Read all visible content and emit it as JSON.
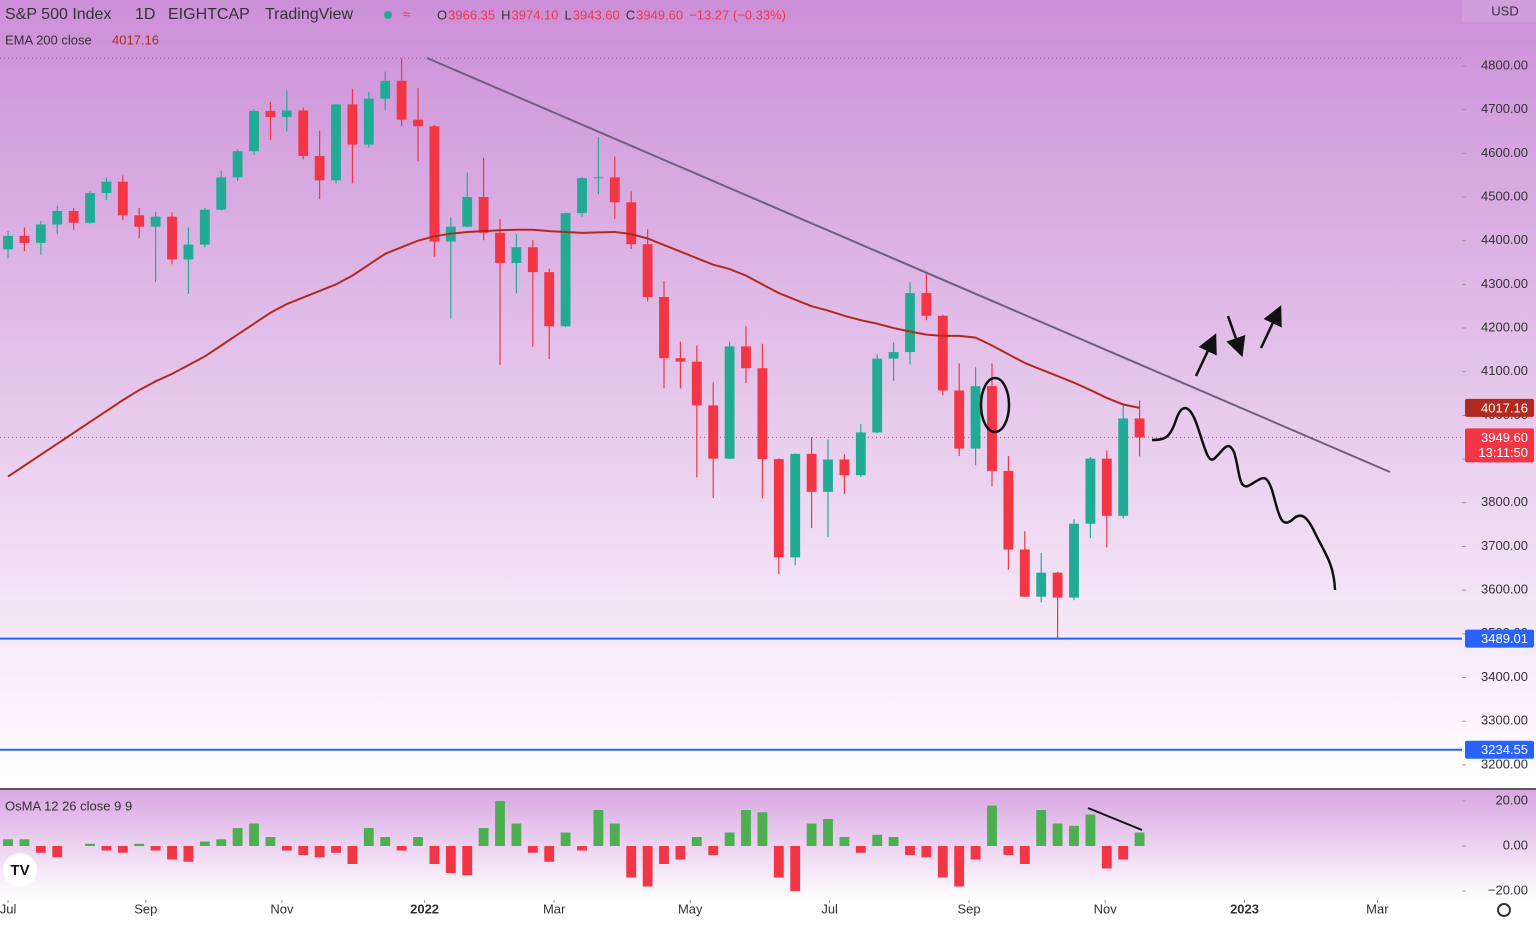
{
  "chart_data": [
    {
      "type": "candlestick",
      "title": "S&P 500 Index",
      "interval": "1D",
      "exchange": "EIGHTCAP",
      "source": "TradingView",
      "legend": [
        {
          "key": "O",
          "value": "3966.35"
        },
        {
          "key": "H",
          "value": "3974.10"
        },
        {
          "key": "L",
          "value": "3943.60"
        },
        {
          "key": "C",
          "value": "3949.60"
        }
      ],
      "change": "−13.27 (−0.33%)",
      "currency": "USD",
      "up_color": "#22ab94",
      "down_color": "#f23645",
      "open": [
        4380,
        4411,
        4395,
        4437,
        4468,
        4441,
        4509,
        4535,
        4458,
        4432,
        4455,
        4357,
        4391,
        4471,
        4545,
        4605,
        4697,
        4683,
        4698,
        4594,
        4538,
        4712,
        4620,
        4725,
        4766,
        4677,
        4662,
        4398,
        4432,
        4500,
        4418,
        4349,
        4385,
        4328,
        4204,
        4463,
        4543,
        4545,
        4488,
        4392,
        4271,
        4131,
        4123,
        4023,
        3901,
        4158,
        4108,
        3900,
        3675,
        3912,
        3825,
        3899,
        3863,
        3961,
        4130,
        4145,
        4280,
        4228,
        4057,
        3924,
        4067,
        3873,
        3693,
        3585,
        3640,
        3583,
        3752,
        3901,
        3770,
        3993
      ],
      "high": [
        4422,
        4430,
        4445,
        4480,
        4475,
        4513,
        4545,
        4549,
        4475,
        4466,
        4465,
        4430,
        4475,
        4560,
        4608,
        4700,
        4718,
        4744,
        4705,
        4652,
        4713,
        4748,
        4740,
        4787,
        4818,
        4749,
        4665,
        4453,
        4556,
        4590,
        4450,
        4416,
        4401,
        4336,
        4465,
        4546,
        4637,
        4593,
        4513,
        4426,
        4308,
        4169,
        4160,
        4076,
        4169,
        4204,
        4164,
        3902,
        3913,
        3950,
        3945,
        3911,
        3980,
        4140,
        4167,
        4305,
        4325,
        4231,
        4119,
        4110,
        4119,
        3907,
        3735,
        3685,
        3642,
        3762,
        3905,
        3920,
        4028,
        4034
      ],
      "low": [
        4360,
        4376,
        4368,
        4415,
        4424,
        4438,
        4493,
        4447,
        4406,
        4305,
        4346,
        4278,
        4385,
        4469,
        4537,
        4596,
        4630,
        4650,
        4586,
        4495,
        4531,
        4531,
        4613,
        4699,
        4662,
        4582,
        4363,
        4222,
        4431,
        4401,
        4115,
        4279,
        4157,
        4129,
        4202,
        4455,
        4507,
        4450,
        4381,
        4261,
        4062,
        4062,
        3858,
        3811,
        3900,
        4074,
        3810,
        3637,
        3657,
        3742,
        3721,
        3820,
        3859,
        3959,
        4079,
        4117,
        4218,
        4046,
        3907,
        3886,
        3838,
        3647,
        3584,
        3572,
        3491,
        3577,
        3719,
        3698,
        3764,
        3906
      ],
      "close": [
        4411,
        4395,
        4437,
        4468,
        4441,
        4509,
        4535,
        4458,
        4432,
        4455,
        4357,
        4391,
        4471,
        4545,
        4605,
        4697,
        4683,
        4698,
        4594,
        4538,
        4712,
        4620,
        4725,
        4766,
        4677,
        4662,
        4398,
        4432,
        4500,
        4418,
        4349,
        4385,
        4328,
        4204,
        4463,
        4543,
        4545,
        4488,
        4392,
        4271,
        4131,
        4123,
        4023,
        3901,
        4158,
        4108,
        3900,
        3675,
        3912,
        3825,
        3899,
        3863,
        3961,
        4130,
        4145,
        4280,
        4228,
        4057,
        3924,
        4067,
        3873,
        3693,
        3585,
        3640,
        3583,
        3752,
        3901,
        3770,
        3993,
        3949.6
      ],
      "overlay": {
        "name": "EMA 200 close",
        "color": "#b02a1e",
        "values": [
          3860,
          3885,
          3910,
          3935,
          3960,
          3985,
          4010,
          4035,
          4058,
          4078,
          4095,
          4115,
          4135,
          4160,
          4185,
          4210,
          4235,
          4255,
          4270,
          4285,
          4300,
          4320,
          4345,
          4370,
          4385,
          4400,
          4410,
          4416,
          4420,
          4422,
          4424,
          4425,
          4425,
          4422,
          4420,
          4418,
          4419,
          4420,
          4415,
          4405,
          4390,
          4375,
          4360,
          4345,
          4335,
          4320,
          4300,
          4280,
          4265,
          4250,
          4240,
          4228,
          4218,
          4210,
          4200,
          4192,
          4185,
          4182,
          4182,
          4178,
          4160,
          4140,
          4120,
          4105,
          4090,
          4075,
          4058,
          4040,
          4025,
          4017.16
        ]
      },
      "levels": [
        {
          "value": 3489.01,
          "color": "#2962ff"
        },
        {
          "value": 3234.55,
          "color": "#2962ff"
        }
      ],
      "last_price": {
        "value": 3949.6,
        "label": "3949.60",
        "countdown": "13:11:50"
      },
      "xlim": [
        -0.49,
        88.66
      ],
      "ylim": [
        3147,
        4951
      ],
      "xticks": [
        {
          "value": 0,
          "label": "Jul"
        },
        {
          "value": 8.4,
          "label": "Sep"
        },
        {
          "value": 16.7,
          "label": "Nov"
        },
        {
          "value": 25.4,
          "label": "2022"
        },
        {
          "value": 33.3,
          "label": "Mar"
        },
        {
          "value": 41.6,
          "label": "May"
        },
        {
          "value": 50.1,
          "label": "Jul"
        },
        {
          "value": 58.6,
          "label": "Sep"
        },
        {
          "value": 66.9,
          "label": "Nov"
        },
        {
          "value": 75.4,
          "label": "2023"
        },
        {
          "value": 83.5,
          "label": "Mar"
        }
      ],
      "yticks": [
        {
          "value": 3200,
          "label": "3200.00"
        },
        {
          "value": 3300,
          "label": "3300.00"
        },
        {
          "value": 3400,
          "label": "3400.00"
        },
        {
          "value": 3500,
          "label": "3500.00"
        },
        {
          "value": 3600,
          "label": "3600.00"
        },
        {
          "value": 3700,
          "label": "3700.00"
        },
        {
          "value": 3800,
          "label": "3800.00"
        },
        {
          "value": 3900,
          "label": "3900.00"
        },
        {
          "value": 4000,
          "label": "4000.00"
        },
        {
          "value": 4100,
          "label": "4100.00"
        },
        {
          "value": 4200,
          "label": "4200.00"
        },
        {
          "value": 4300,
          "label": "4300.00"
        },
        {
          "value": 4400,
          "label": "4400.00"
        },
        {
          "value": 4500,
          "label": "4500.00"
        },
        {
          "value": 4600,
          "label": "4600.00"
        },
        {
          "value": 4700,
          "label": "4700.00"
        },
        {
          "value": 4800,
          "label": "4800.00"
        }
      ]
    },
    {
      "type": "histogram",
      "title": "OsMA 12 26 close 9 9",
      "up_color": "#4caf50",
      "down_color": "#f23645",
      "values": [
        3,
        3,
        -3,
        -5,
        0,
        1,
        -2,
        -3,
        1,
        -2,
        -6,
        -7,
        2,
        3,
        8,
        10,
        4,
        -2,
        -4,
        -5,
        -3,
        -8,
        8,
        4,
        -2,
        4,
        -8,
        -12,
        -13,
        8,
        20,
        10,
        -3,
        -7,
        6,
        -2,
        16,
        10,
        -14,
        -18,
        -8,
        -6,
        4,
        -4,
        6,
        16,
        15,
        -14,
        -20,
        10,
        12,
        4,
        -3,
        5,
        4,
        -4,
        -5,
        -14,
        -18,
        -6,
        18,
        -4,
        -8,
        16,
        10,
        9,
        14,
        -10,
        -6,
        6
      ],
      "ylim": [
        -24,
        24.9
      ],
      "yticks": [
        {
          "value": 20,
          "label": "20.00"
        },
        {
          "value": 0,
          "label": "0.00"
        },
        {
          "value": -20,
          "label": "−20.00"
        }
      ]
    }
  ]
}
